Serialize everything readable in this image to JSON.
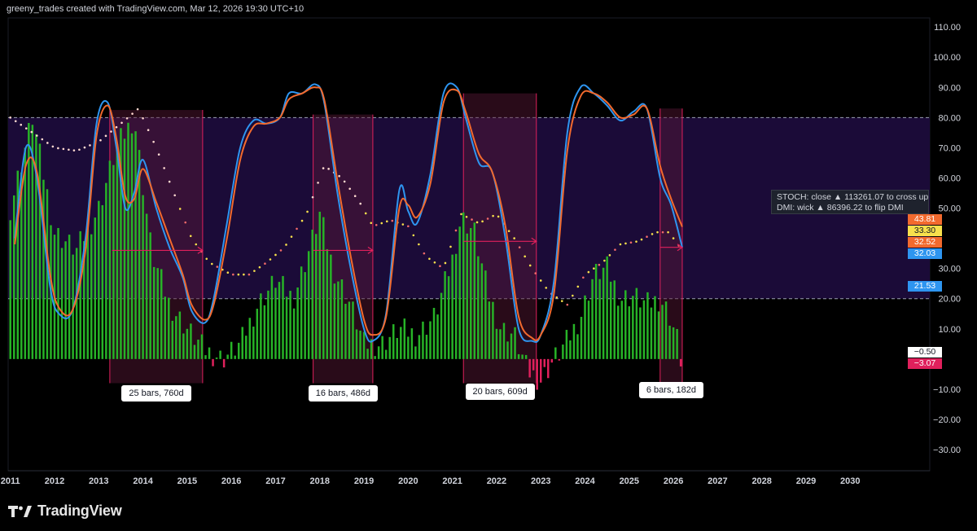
{
  "header": {
    "caption": "greeny_trades created with TradingView.com, Mar 12, 2026 19:30 UTC+10"
  },
  "brand": {
    "logo_text": "TradingView"
  },
  "tooltip": {
    "line1": "STOCH: close ▲ 113261.07 to cross up",
    "line2": "DMI: wick ▲ 86396.22 to flip DMI"
  },
  "colors": {
    "background": "#000000",
    "band_fill": "#1b0b38",
    "stoch_k": "#2e95f0",
    "stoch_d": "#f26a2e",
    "histogram": "#27b327",
    "histogram_negative": "#e0205c",
    "highlight_box": "#5a1838",
    "threshold_line": "#9aa0b0"
  },
  "badges": [
    {
      "text": "43.81",
      "value": 43.81,
      "bg": "#f26a2e",
      "fg": "#ffffff"
    },
    {
      "text": "33.30",
      "value": 33.3,
      "bg": "#f7e04c",
      "fg": "#131722"
    },
    {
      "text": "32.52",
      "value": 32.52,
      "bg": "#f26a2e",
      "fg": "#ffffff"
    },
    {
      "text": "32.03",
      "value": 32.03,
      "bg": "#2e95f0",
      "fg": "#ffffff"
    },
    {
      "text": "21.53",
      "value": 21.53,
      "bg": "#2e95f0",
      "fg": "#ffffff"
    },
    {
      "text": "−0.50",
      "value": -0.5,
      "bg": "#ffffff",
      "fg": "#131722"
    },
    {
      "text": "−3.07",
      "value": -3.07,
      "bg": "#e0205c",
      "fg": "#ffffff"
    }
  ],
  "chart_data": {
    "type": "line",
    "ylim": [
      -37,
      113
    ],
    "xlim": [
      2010.95,
      2031.8
    ],
    "yticks": [
      {
        "v": 110,
        "label": "110.00"
      },
      {
        "v": 100,
        "label": "100.00"
      },
      {
        "v": 90,
        "label": "90.00"
      },
      {
        "v": 80,
        "label": "80.00"
      },
      {
        "v": 70,
        "label": "70.00"
      },
      {
        "v": 60,
        "label": "60.00"
      },
      {
        "v": 50,
        "label": "50.00"
      },
      {
        "v": 30,
        "label": "30.00"
      },
      {
        "v": 20,
        "label": "20.00"
      },
      {
        "v": 10,
        "label": "10.00"
      },
      {
        "v": -10,
        "label": "−10.00"
      },
      {
        "v": -20,
        "label": "−20.00"
      },
      {
        "v": -30,
        "label": "−30.00"
      }
    ],
    "xticks": [
      "2011",
      "2012",
      "2013",
      "2014",
      "2015",
      "2016",
      "2017",
      "2018",
      "2019",
      "2020",
      "2021",
      "2022",
      "2023",
      "2024",
      "2025",
      "2026",
      "2027",
      "2028",
      "2029",
      "2030"
    ],
    "thresholds": [
      80,
      20
    ],
    "series": [
      {
        "kind": "stoch_k",
        "x": [
          2011.1,
          2011.35,
          2011.6,
          2011.9,
          2012.1,
          2012.4,
          2012.7,
          2012.95,
          2013.2,
          2013.4,
          2013.6,
          2013.8,
          2014.0,
          2014.3,
          2014.6,
          2014.9,
          2015.1,
          2015.4,
          2015.6,
          2015.9,
          2016.2,
          2016.5,
          2016.8,
          2017.1,
          2017.3,
          2017.6,
          2017.9,
          2018.1,
          2018.4,
          2018.7,
          2019.0,
          2019.2,
          2019.5,
          2019.8,
          2020.0,
          2020.2,
          2020.5,
          2020.8,
          2021.1,
          2021.3,
          2021.6,
          2021.9,
          2022.2,
          2022.5,
          2022.8,
          2023.0,
          2023.3,
          2023.6,
          2023.9,
          2024.2,
          2024.5,
          2024.8,
          2025.1,
          2025.4,
          2025.7,
          2025.95,
          2026.2
        ],
        "y": [
          40,
          70,
          60,
          24,
          15,
          16,
          40,
          78,
          85,
          70,
          50,
          55,
          66,
          50,
          37,
          27,
          16,
          12,
          20,
          45,
          70,
          79,
          78,
          80,
          88,
          88,
          91,
          85,
          55,
          30,
          10,
          6,
          15,
          56,
          49,
          45,
          61,
          88,
          90,
          80,
          65,
          62,
          40,
          10,
          6,
          8,
          26,
          75,
          90,
          88,
          84,
          79,
          82,
          83,
          60,
          51,
          37
        ]
      },
      {
        "kind": "stoch_d",
        "x": [
          2011.1,
          2011.35,
          2011.6,
          2011.9,
          2012.1,
          2012.4,
          2012.7,
          2012.95,
          2013.2,
          2013.4,
          2013.6,
          2013.8,
          2014.0,
          2014.3,
          2014.6,
          2014.9,
          2015.1,
          2015.4,
          2015.6,
          2015.9,
          2016.2,
          2016.5,
          2016.8,
          2017.1,
          2017.3,
          2017.6,
          2017.9,
          2018.1,
          2018.4,
          2018.7,
          2019.0,
          2019.2,
          2019.5,
          2019.8,
          2020.0,
          2020.2,
          2020.5,
          2020.8,
          2021.1,
          2021.3,
          2021.6,
          2021.9,
          2022.2,
          2022.5,
          2022.8,
          2023.0,
          2023.3,
          2023.6,
          2023.9,
          2024.2,
          2024.5,
          2024.8,
          2025.1,
          2025.4,
          2025.7,
          2025.95,
          2026.2
        ],
        "y": [
          38,
          64,
          62,
          28,
          17,
          16,
          36,
          74,
          84,
          73,
          54,
          53,
          63,
          52,
          40,
          28,
          18,
          13,
          18,
          40,
          66,
          77,
          78,
          80,
          86,
          88,
          90,
          86,
          59,
          34,
          13,
          8,
          14,
          50,
          51,
          47,
          58,
          85,
          89,
          82,
          68,
          62,
          44,
          14,
          7,
          8,
          22,
          69,
          87,
          88,
          85,
          80,
          81,
          83,
          64,
          53,
          43.81
        ]
      },
      {
        "kind": "dmi_dots",
        "x": [
          2011.0,
          2011.5,
          2012.0,
          2012.5,
          2013.0,
          2013.5,
          2013.9,
          2014.3,
          2014.7,
          2015.1,
          2015.5,
          2016.0,
          2016.4,
          2016.8,
          2017.2,
          2017.7,
          2018.1,
          2018.5,
          2018.9,
          2019.2,
          2019.6,
          2020.0,
          2020.4,
          2020.8,
          2021.2,
          2021.6,
          2022.0,
          2022.4,
          2022.8,
          2023.2,
          2023.6,
          2024.0,
          2024.4,
          2024.8,
          2025.2,
          2025.6,
          2025.9,
          2026.2
        ],
        "y": [
          80,
          75,
          70,
          69,
          72,
          78,
          83,
          70,
          55,
          40,
          32,
          28,
          28,
          32,
          37,
          48,
          64,
          60,
          52,
          44,
          46,
          44,
          34,
          30,
          48,
          45,
          48,
          40,
          30,
          22,
          18,
          28,
          32,
          38,
          39,
          42,
          42,
          36
        ]
      }
    ],
    "histogram": {
      "x": [
        2011.0,
        2011.5,
        2012.0,
        2012.5,
        2013.0,
        2013.4,
        2013.8,
        2014.2,
        2014.6,
        2015.0,
        2015.4,
        2015.8,
        2016.2,
        2016.6,
        2017.0,
        2017.4,
        2017.8,
        2018.0,
        2018.3,
        2018.7,
        2019.0,
        2019.4,
        2019.8,
        2020.2,
        2020.6,
        2021.0,
        2021.2,
        2021.5,
        2021.8,
        2022.1,
        2022.4,
        2022.7,
        2023.0,
        2023.3,
        2023.6,
        2023.9,
        2024.2,
        2024.5,
        2024.8,
        2025.1,
        2025.4,
        2025.7,
        2025.9,
        2026.1,
        2026.2
      ],
      "y": [
        50,
        80,
        42,
        36,
        50,
        70,
        80,
        35,
        18,
        10,
        3,
        0,
        5,
        18,
        26,
        20,
        38,
        48,
        30,
        18,
        5,
        5,
        10,
        8,
        14,
        33,
        47,
        42,
        22,
        10,
        8,
        -4,
        -7,
        0,
        6,
        14,
        28,
        30,
        20,
        21,
        18,
        20,
        15,
        6,
        -3.07
      ]
    },
    "highlights": [
      {
        "x0": 2013.25,
        "x1": 2015.35,
        "y_top": 82.5,
        "label": "25 bars, 760d"
      },
      {
        "x0": 2017.85,
        "x1": 2019.2,
        "y_top": 81,
        "label": "16 bars, 486d"
      },
      {
        "x0": 2021.25,
        "x1": 2022.9,
        "y_top": 88,
        "label": "20 bars, 609d"
      },
      {
        "x0": 2025.7,
        "x1": 2026.2,
        "y_top": 83,
        "label": "6 bars, 182d"
      }
    ],
    "highlight_bottom": -8,
    "duration_arrows": [
      {
        "x0": 2013.3,
        "x1": 2015.35,
        "y": 36
      },
      {
        "x0": 2017.85,
        "x1": 2019.2,
        "y": 36
      },
      {
        "x0": 2021.25,
        "x1": 2022.9,
        "y": 39
      },
      {
        "x0": 2025.7,
        "x1": 2026.2,
        "y": 37
      }
    ]
  }
}
